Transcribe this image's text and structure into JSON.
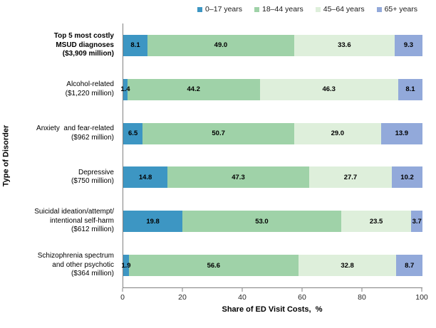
{
  "chart_data": {
    "type": "bar",
    "orientation": "horizontal",
    "stacked": true,
    "xlabel": "Share of ED Visit Costs,  %",
    "ylabel": "Type of Disorder",
    "xlim": [
      0,
      100
    ],
    "xticks": [
      0,
      20,
      40,
      60,
      80,
      100
    ],
    "legend_position": "top",
    "grid": false,
    "axis_color": "#808080",
    "series": [
      {
        "name": "0–17 years",
        "color": "#3D96C3",
        "values": [
          8.1,
          1.4,
          6.5,
          14.8,
          19.8,
          1.9
        ],
        "value_labels": [
          "8.1",
          "1.4",
          "6.5",
          "14.8",
          "19.8",
          "1.9"
        ]
      },
      {
        "name": "18–44 years",
        "color": "#9FD2A8",
        "values": [
          49.0,
          44.2,
          50.7,
          47.3,
          53.0,
          56.6
        ],
        "value_labels": [
          "49.0",
          "44.2",
          "50.7",
          "47.3",
          "53.0",
          "56.6"
        ]
      },
      {
        "name": "45–64 years",
        "color": "#DEEFDB",
        "values": [
          33.6,
          46.3,
          29.0,
          27.7,
          23.5,
          32.8
        ],
        "value_labels": [
          "33.6",
          "46.3",
          "29.0",
          "27.7",
          "23.5",
          "32.8"
        ]
      },
      {
        "name": "65+ years",
        "color": "#92A9DA",
        "values": [
          9.3,
          8.1,
          13.9,
          10.2,
          3.7,
          8.7
        ],
        "value_labels": [
          "9.3",
          "8.1",
          "13.9",
          "10.2",
          "3.7",
          "8.7"
        ]
      }
    ],
    "categories": [
      {
        "lines": [
          "Top 5 most costly",
          "MSUD diagnoses",
          "($3,909 million)"
        ],
        "bold": true
      },
      {
        "lines": [
          "Alcohol-related",
          "($1,220 million)"
        ],
        "bold": false
      },
      {
        "lines": [
          "Anxiety  and fear-related",
          "($962 million)"
        ],
        "bold": false
      },
      {
        "lines": [
          "Depressive",
          "($750 million)"
        ],
        "bold": false
      },
      {
        "lines": [
          "Suicidal ideation/attempt/",
          "intentional self-harm",
          "($612 million)"
        ],
        "bold": false
      },
      {
        "lines": [
          "Schizophrenia spectrum",
          "and other psychotic",
          "($364 million)"
        ],
        "bold": false
      }
    ]
  }
}
